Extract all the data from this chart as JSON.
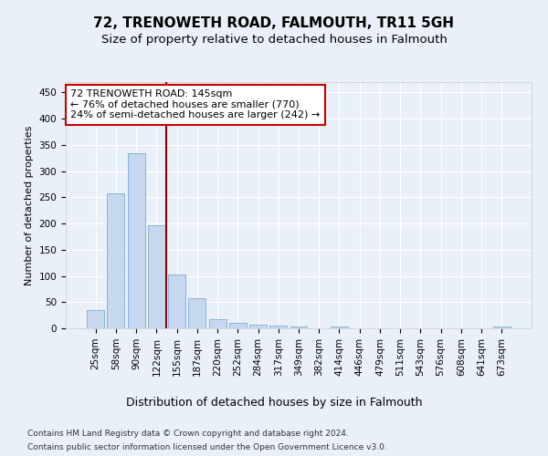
{
  "title1": "72, TRENOWETH ROAD, FALMOUTH, TR11 5GH",
  "title2": "Size of property relative to detached houses in Falmouth",
  "xlabel": "Distribution of detached houses by size in Falmouth",
  "ylabel": "Number of detached properties",
  "categories": [
    "25sqm",
    "58sqm",
    "90sqm",
    "122sqm",
    "155sqm",
    "187sqm",
    "220sqm",
    "252sqm",
    "284sqm",
    "317sqm",
    "349sqm",
    "382sqm",
    "414sqm",
    "446sqm",
    "479sqm",
    "511sqm",
    "543sqm",
    "576sqm",
    "608sqm",
    "641sqm",
    "673sqm"
  ],
  "values": [
    35,
    257,
    335,
    197,
    103,
    57,
    18,
    10,
    7,
    5,
    3,
    0,
    3,
    0,
    0,
    0,
    0,
    0,
    0,
    0,
    3
  ],
  "bar_color": "#c5d8f0",
  "bar_edge_color": "#7aadd4",
  "vline_x": 3.5,
  "vline_color": "#8b0000",
  "annotation_text": "72 TRENOWETH ROAD: 145sqm\n← 76% of detached houses are smaller (770)\n24% of semi-detached houses are larger (242) →",
  "annotation_box_color": "#ffffff",
  "annotation_box_edge": "#cc0000",
  "ylim": [
    0,
    470
  ],
  "yticks": [
    0,
    50,
    100,
    150,
    200,
    250,
    300,
    350,
    400,
    450
  ],
  "bg_color": "#eaf0f8",
  "plot_bg_color": "#eaf0f8",
  "footer1": "Contains HM Land Registry data © Crown copyright and database right 2024.",
  "footer2": "Contains public sector information licensed under the Open Government Licence v3.0.",
  "title1_fontsize": 11,
  "title2_fontsize": 9.5,
  "xlabel_fontsize": 9,
  "ylabel_fontsize": 8,
  "tick_fontsize": 7.5,
  "annotation_fontsize": 8,
  "footer_fontsize": 6.5
}
